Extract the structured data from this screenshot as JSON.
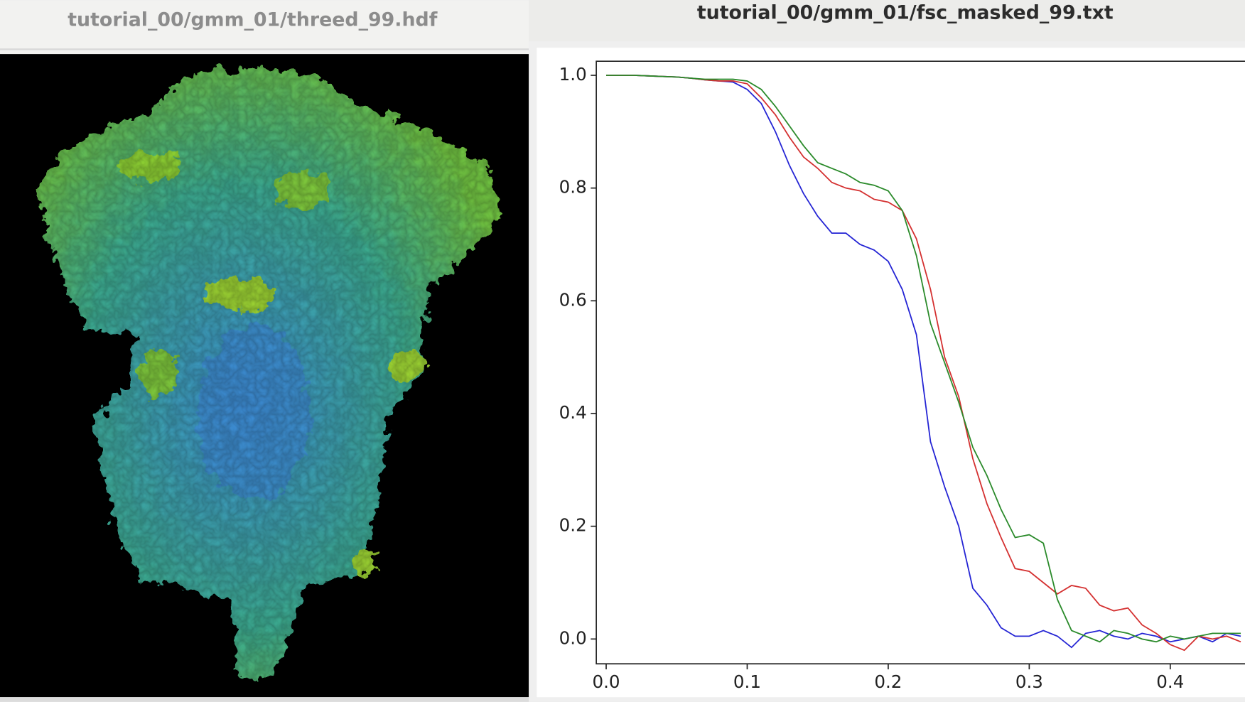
{
  "windows": [
    {
      "title": "tutorial_00/gmm_01/threed_99.hdf"
    },
    {
      "title": "tutorial_00/gmm_01/fsc_masked_99.txt"
    }
  ],
  "chart_data": {
    "type": "line",
    "x": [
      0.0,
      0.01,
      0.02,
      0.03,
      0.04,
      0.05,
      0.06,
      0.07,
      0.08,
      0.09,
      0.1,
      0.11,
      0.12,
      0.13,
      0.14,
      0.15,
      0.16,
      0.17,
      0.18,
      0.19,
      0.2,
      0.21,
      0.22,
      0.23,
      0.24,
      0.25,
      0.26,
      0.27,
      0.28,
      0.29,
      0.3,
      0.31,
      0.32,
      0.33,
      0.34,
      0.35,
      0.36,
      0.37,
      0.38,
      0.39,
      0.4,
      0.41,
      0.42,
      0.43,
      0.44,
      0.45
    ],
    "series": [
      {
        "color": "#2424d4",
        "values": [
          1.0,
          1.0,
          1.0,
          0.999,
          0.998,
          0.997,
          0.995,
          0.992,
          0.99,
          0.988,
          0.975,
          0.95,
          0.9,
          0.84,
          0.79,
          0.75,
          0.72,
          0.72,
          0.7,
          0.69,
          0.67,
          0.62,
          0.54,
          0.35,
          0.27,
          0.2,
          0.09,
          0.06,
          0.02,
          0.005,
          0.005,
          0.015,
          0.005,
          -0.015,
          0.01,
          0.015,
          0.005,
          0.0,
          0.01,
          0.005,
          -0.005,
          0.0,
          0.005,
          -0.005,
          0.01,
          0.005
        ]
      },
      {
        "color": "#d43030",
        "values": [
          1.0,
          1.0,
          1.0,
          0.999,
          0.998,
          0.997,
          0.995,
          0.992,
          0.99,
          0.99,
          0.985,
          0.96,
          0.93,
          0.89,
          0.855,
          0.835,
          0.81,
          0.8,
          0.795,
          0.78,
          0.775,
          0.76,
          0.71,
          0.62,
          0.5,
          0.43,
          0.32,
          0.24,
          0.18,
          0.125,
          0.12,
          0.1,
          0.08,
          0.095,
          0.09,
          0.06,
          0.05,
          0.055,
          0.025,
          0.01,
          -0.01,
          -0.02,
          0.005,
          0.0,
          0.005,
          -0.005
        ]
      },
      {
        "color": "#2a8a2a",
        "values": [
          1.0,
          1.0,
          1.0,
          0.999,
          0.998,
          0.997,
          0.995,
          0.993,
          0.993,
          0.993,
          0.99,
          0.975,
          0.945,
          0.91,
          0.875,
          0.845,
          0.835,
          0.825,
          0.81,
          0.805,
          0.795,
          0.76,
          0.68,
          0.56,
          0.49,
          0.42,
          0.34,
          0.29,
          0.23,
          0.18,
          0.185,
          0.17,
          0.07,
          0.015,
          0.005,
          -0.005,
          0.015,
          0.01,
          0.0,
          -0.005,
          0.005,
          0.0,
          0.005,
          0.01,
          0.01,
          0.01
        ]
      }
    ],
    "xlim": [
      -0.007,
      0.453
    ],
    "ylim": [
      -0.044,
      1.025
    ],
    "xticks": [
      {
        "value": 0,
        "label": "0.0"
      },
      0.1,
      0.2,
      0.3,
      0.4
    ],
    "yticks": [
      {
        "value": 0,
        "label": "0.0"
      },
      0.2,
      0.4,
      0.6,
      0.8,
      {
        "value": 1,
        "label": "1.0"
      }
    ]
  }
}
